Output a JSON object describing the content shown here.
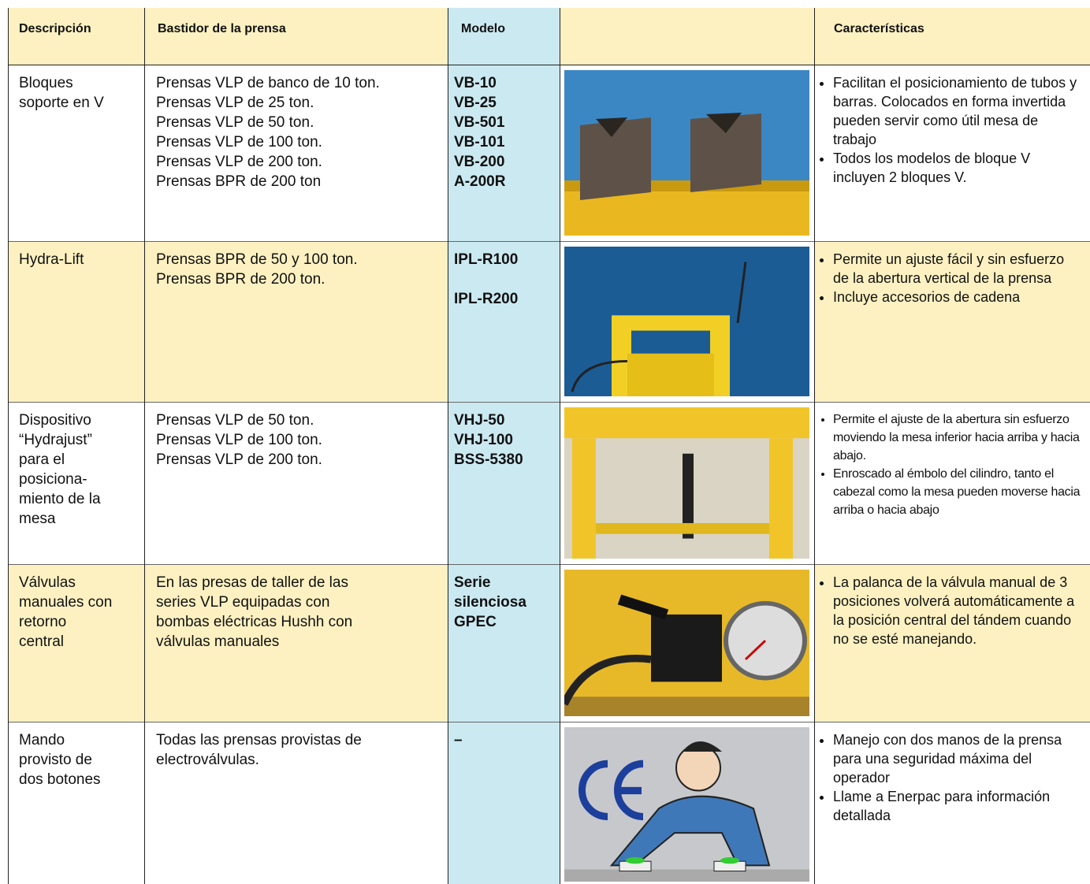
{
  "header": {
    "description": "Descripción",
    "frame": "Bastidor de la prensa",
    "model": "Modelo",
    "features": "Características"
  },
  "rows": [
    {
      "description": [
        "Bloques",
        "soporte en V"
      ],
      "frame": [
        "Prensas VLP de banco de 10 ton.",
        "Prensas VLP de 25 ton.",
        "Prensas VLP de 50 ton.",
        "Prensas VLP de 100 ton.",
        "Prensas VLP de 200 ton.",
        "Prensas BPR de 200 ton"
      ],
      "models": [
        "VB-10",
        "VB-25",
        "VB-501",
        "VB-101",
        "VB-200",
        "A-200R"
      ],
      "features": [
        "Facilitan el posicionamiento de tubos y barras. Colocados en forma invertida pueden servir como útil mesa de trabajo",
        "Todos los modelos de bloque V incluyen 2 bloques V."
      ]
    },
    {
      "description": [
        "Hydra-Lift"
      ],
      "frame": [
        "Prensas BPR de 50 y 100 ton.",
        "Prensas BPR de 200 ton."
      ],
      "models": [
        "IPL-R100",
        "IPL-R200"
      ],
      "features": [
        "Permite un ajuste fácil y sin esfuerzo de la abertura vertical de la prensa",
        "Incluye accesorios de cadena"
      ]
    },
    {
      "description": [
        "Dispositivo",
        "“Hydrajust”",
        "para el",
        "posiciona-",
        "miento de la",
        "mesa"
      ],
      "frame": [
        "Prensas VLP de 50 ton.",
        "Prensas VLP de 100 ton.",
        "Prensas VLP de 200 ton."
      ],
      "models": [
        "VHJ-50",
        "VHJ-100",
        "BSS-5380"
      ],
      "features": [
        "Permite el ajuste de la abertura sin esfuerzo moviendo la mesa inferior hacia arriba y hacia abajo.",
        "Enroscado al émbolo del cilindro, tanto el cabezal como la mesa pueden moverse hacia arriba o hacia abajo"
      ]
    },
    {
      "description": [
        "Válvulas",
        "manuales con",
        "retorno",
        "central"
      ],
      "frame": [
        "En las presas de taller de las",
        "series VLP equipadas con",
        "bombas eléctricas Hushh con",
        "válvulas manuales"
      ],
      "models": [
        "Serie",
        "silenciosa",
        "GPEC"
      ],
      "features": [
        "La palanca de la válvula manual de 3 posiciones volverá automáticamente a la posición central del tándem cuando no se esté manejando."
      ]
    },
    {
      "description": [
        "Mando",
        "provisto de",
        "dos botones"
      ],
      "frame": [
        "Todas las prensas provistas de",
        "electroválvulas."
      ],
      "models": [
        "–"
      ],
      "features": [
        "Manejo con dos manos de la prensa para una seguridad máxima del operador",
        "Llame a Enerpac para información detallada"
      ]
    }
  ]
}
